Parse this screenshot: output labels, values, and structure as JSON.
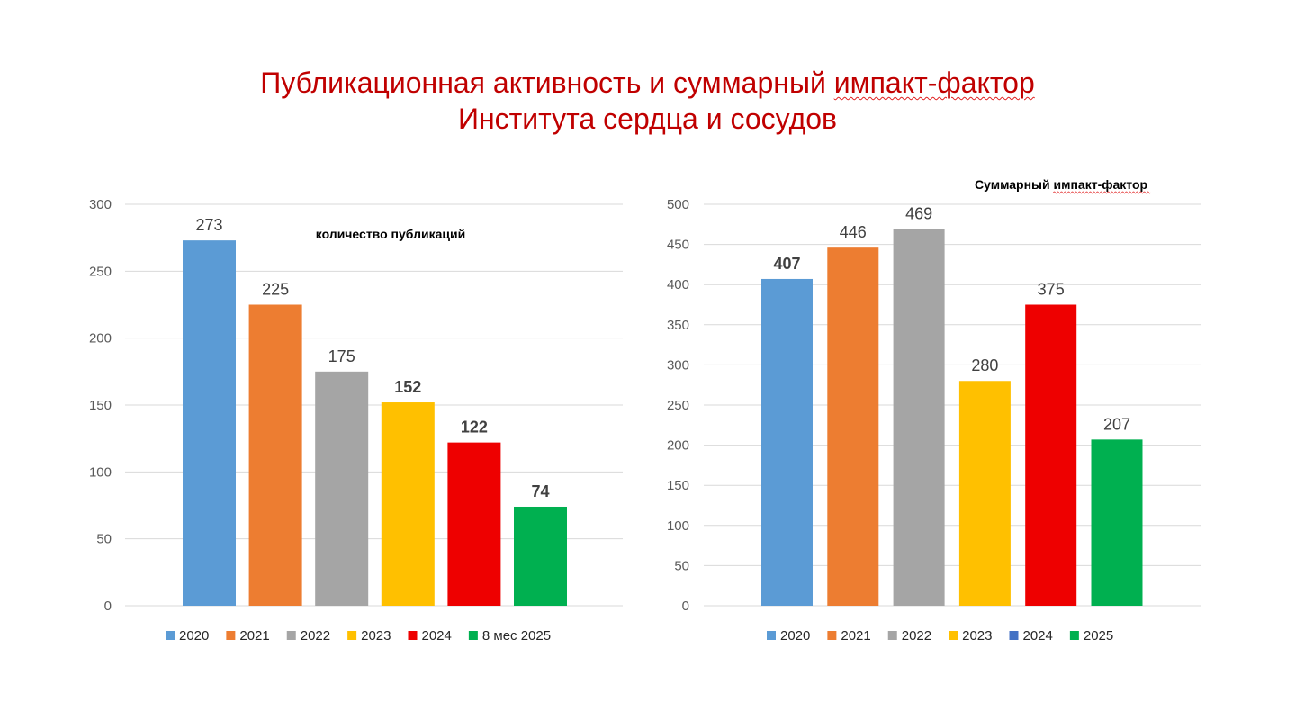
{
  "title": {
    "line1_part1": "Публикационная активность и суммарный ",
    "line1_part2": "импакт-фактор",
    "line2": "Института сердца и сосудов",
    "color": "#c00000"
  },
  "chart_data": [
    {
      "type": "bar",
      "title": "количество публикаций",
      "categories": [
        "2020",
        "2021",
        "2022",
        "2023",
        "2024",
        "8 мес 2025"
      ],
      "values": [
        273,
        225,
        175,
        152,
        122,
        74
      ],
      "colors": [
        "#5b9bd5",
        "#ed7d31",
        "#a5a5a5",
        "#ffc000",
        "#ee0000",
        "#00b050"
      ],
      "legend": [
        "2020",
        "2021",
        "2022",
        "2023",
        "2024",
        "8 мес 2025"
      ],
      "legend_colors": [
        "#5b9bd5",
        "#ed7d31",
        "#a5a5a5",
        "#ffc000",
        "#ee0000",
        "#00b050"
      ],
      "legend_position": "bottom",
      "xlabel": "",
      "ylabel": "",
      "ylim": [
        0,
        300
      ],
      "yticks": [
        0,
        50,
        100,
        150,
        200,
        250,
        300
      ],
      "grid": true
    },
    {
      "type": "bar",
      "title_part1": "Суммарный ",
      "title_part2": "импакт-фактор",
      "categories": [
        "2020",
        "2021",
        "2022",
        "2023",
        "2024",
        "2025"
      ],
      "values": [
        407,
        446,
        469,
        280,
        375,
        207
      ],
      "colors": [
        "#5b9bd5",
        "#ed7d31",
        "#a5a5a5",
        "#ffc000",
        "#ee0000",
        "#00b050"
      ],
      "legend": [
        "2020",
        "2021",
        "2022",
        "2023",
        "2024",
        "2025"
      ],
      "legend_colors": [
        "#5b9bd5",
        "#ed7d31",
        "#a5a5a5",
        "#ffc000",
        "#4472c4",
        "#00b050"
      ],
      "legend_position": "bottom",
      "xlabel": "",
      "ylabel": "",
      "ylim": [
        0,
        500
      ],
      "yticks": [
        0,
        50,
        100,
        150,
        200,
        250,
        300,
        350,
        400,
        450,
        500
      ],
      "grid": true
    }
  ]
}
